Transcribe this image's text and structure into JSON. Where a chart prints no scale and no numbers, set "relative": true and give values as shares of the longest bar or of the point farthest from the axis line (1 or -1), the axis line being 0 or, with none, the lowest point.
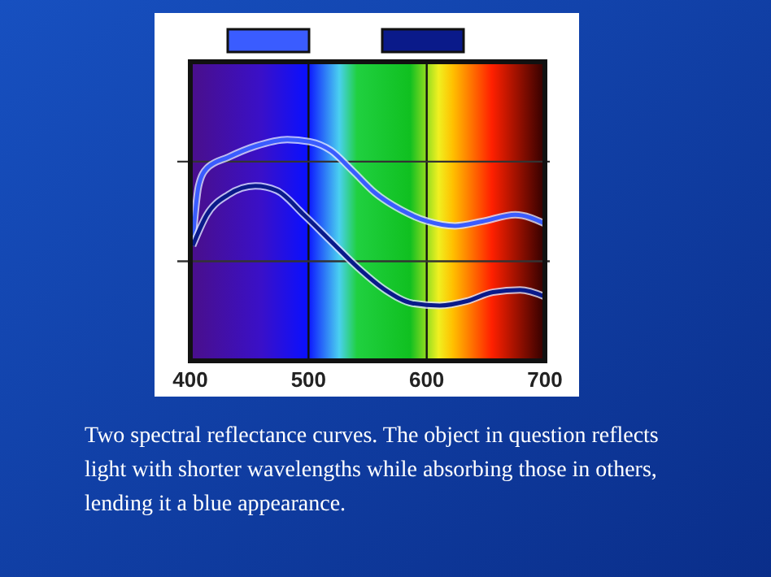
{
  "chart_data": {
    "type": "line",
    "relative": true,
    "xlim": [
      400,
      700
    ],
    "xticks": [
      400,
      500,
      600,
      700
    ],
    "grid": "x",
    "annotations": [
      "Two spectral reflectance curves. The object in question reflects light with shorter wavelengths while absorbing those in others, lending it a blue appearance."
    ],
    "ref_lines": [
      {
        "axis": "y",
        "value": 0.9
      },
      {
        "axis": "y",
        "value": 0.45
      }
    ],
    "series": [
      {
        "color": "#3a5cff",
        "x": [
          402,
          407,
          414,
          432,
          455,
          482,
          501,
          519,
          537,
          556,
          579,
          601,
          624,
          647,
          675,
          700
        ],
        "values": [
          0.54,
          0.79,
          0.87,
          0.92,
          0.97,
          1.0,
          0.99,
          0.95,
          0.86,
          0.76,
          0.68,
          0.63,
          0.61,
          0.63,
          0.66,
          0.62
        ]
      },
      {
        "color": "#0a1a8a",
        "x": [
          402,
          414,
          432,
          455,
          473,
          496,
          519,
          542,
          565,
          588,
          611,
          634,
          656,
          679,
          700
        ],
        "values": [
          0.52,
          0.66,
          0.75,
          0.79,
          0.77,
          0.66,
          0.54,
          0.42,
          0.32,
          0.26,
          0.25,
          0.27,
          0.31,
          0.32,
          0.29
        ]
      }
    ]
  }
}
